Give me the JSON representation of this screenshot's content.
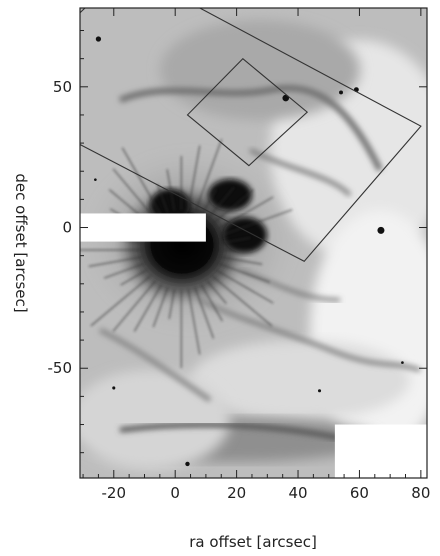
{
  "plot": {
    "xlabel": "ra offset [arcsec]",
    "ylabel": "dec offset [arcsec]",
    "xlim": [
      -31,
      82
    ],
    "ylim": [
      -89,
      78
    ],
    "x_ticks": [
      -20,
      0,
      20,
      40,
      60,
      80
    ],
    "y_ticks": [
      -50,
      0,
      50
    ]
  },
  "image": {
    "description_type": "grayscale astronomical nebula image",
    "ink_color": "#111111",
    "background_color": "#ffffff",
    "overlay_color": "#333333"
  },
  "overlay_boxes": [
    {
      "name": "large-footprint",
      "vertices": [
        [
          -16,
          92
        ],
        [
          80,
          36
        ],
        [
          42,
          -12
        ],
        [
          -60,
          46
        ]
      ]
    },
    {
      "name": "small-footprint",
      "vertices": [
        [
          22,
          60
        ],
        [
          43,
          41
        ],
        [
          24,
          22
        ],
        [
          4,
          40
        ]
      ]
    }
  ],
  "masked_regions": [
    {
      "name": "masked-strip-left",
      "x": [
        -31,
        10
      ],
      "y": [
        -5,
        5
      ]
    },
    {
      "name": "masked-block-bottom-right",
      "x": [
        52,
        82
      ],
      "y": [
        -89,
        -70
      ]
    }
  ],
  "stars": [
    {
      "x": -25,
      "y": 67,
      "r": 1.2
    },
    {
      "x": 36,
      "y": 46,
      "r": 1.5
    },
    {
      "x": 54,
      "y": 48,
      "r": 0.9
    },
    {
      "x": 59,
      "y": 49,
      "r": 1.1
    },
    {
      "x": 67,
      "y": -1,
      "r": 1.6
    },
    {
      "x": 4,
      "y": -84,
      "r": 1.0
    },
    {
      "x": -20,
      "y": -57,
      "r": 0.7
    },
    {
      "x": 47,
      "y": -58,
      "r": 0.7
    },
    {
      "x": -26,
      "y": 17,
      "r": 0.6
    },
    {
      "x": 74,
      "y": -48,
      "r": 0.6
    }
  ]
}
